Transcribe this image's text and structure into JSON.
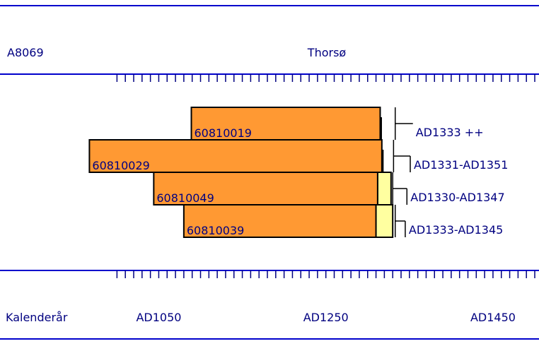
{
  "chart_data": {
    "type": "dendro",
    "site_code": "A8069",
    "site_name": "Thorsø",
    "axis_label": "Kalenderår",
    "xlim": [
      860,
      1500
    ],
    "xticks": [
      {
        "value": 1050,
        "label": "AD1050"
      },
      {
        "value": 1250,
        "label": "AD1250"
      },
      {
        "value": 1450,
        "label": "AD1450"
      }
    ],
    "xminor": [
      1000,
      1010,
      1020,
      1030,
      1040,
      1050,
      1060,
      1070,
      1080,
      1090,
      1100,
      1110,
      1120,
      1130,
      1140,
      1150,
      1160,
      1170,
      1180,
      1190,
      1200,
      1210,
      1220,
      1230,
      1240,
      1250,
      1260,
      1270,
      1280,
      1290,
      1300,
      1310,
      1320,
      1330,
      1340,
      1350,
      1360,
      1370,
      1380,
      1390,
      1400,
      1410,
      1420,
      1430,
      1440,
      1450,
      1460,
      1470,
      1480,
      1490,
      1500
    ],
    "heartwood_color": "#ff9933",
    "sapwood_color": "#ffffa0",
    "samples": [
      {
        "name": "60810019",
        "start": 1089,
        "heartwood_end": 1315,
        "sapwood_end": null,
        "felling_from": 1333,
        "felling_to": null,
        "felling_label": "AD1333 ++"
      },
      {
        "name": "60810029",
        "start": 967,
        "heartwood_end": 1317,
        "sapwood_end": null,
        "felling_from": 1331,
        "felling_to": 1351,
        "felling_label": "AD1331-AD1351"
      },
      {
        "name": "60810049",
        "start": 1044,
        "heartwood_end": 1312,
        "sapwood_end": 1328,
        "felling_from": 1330,
        "felling_to": 1347,
        "felling_label": "AD1330-AD1347"
      },
      {
        "name": "60810039",
        "start": 1080,
        "heartwood_end": 1310,
        "sapwood_end": 1330,
        "felling_from": 1333,
        "felling_to": 1345,
        "felling_label": "AD1333-AD1345"
      }
    ]
  }
}
